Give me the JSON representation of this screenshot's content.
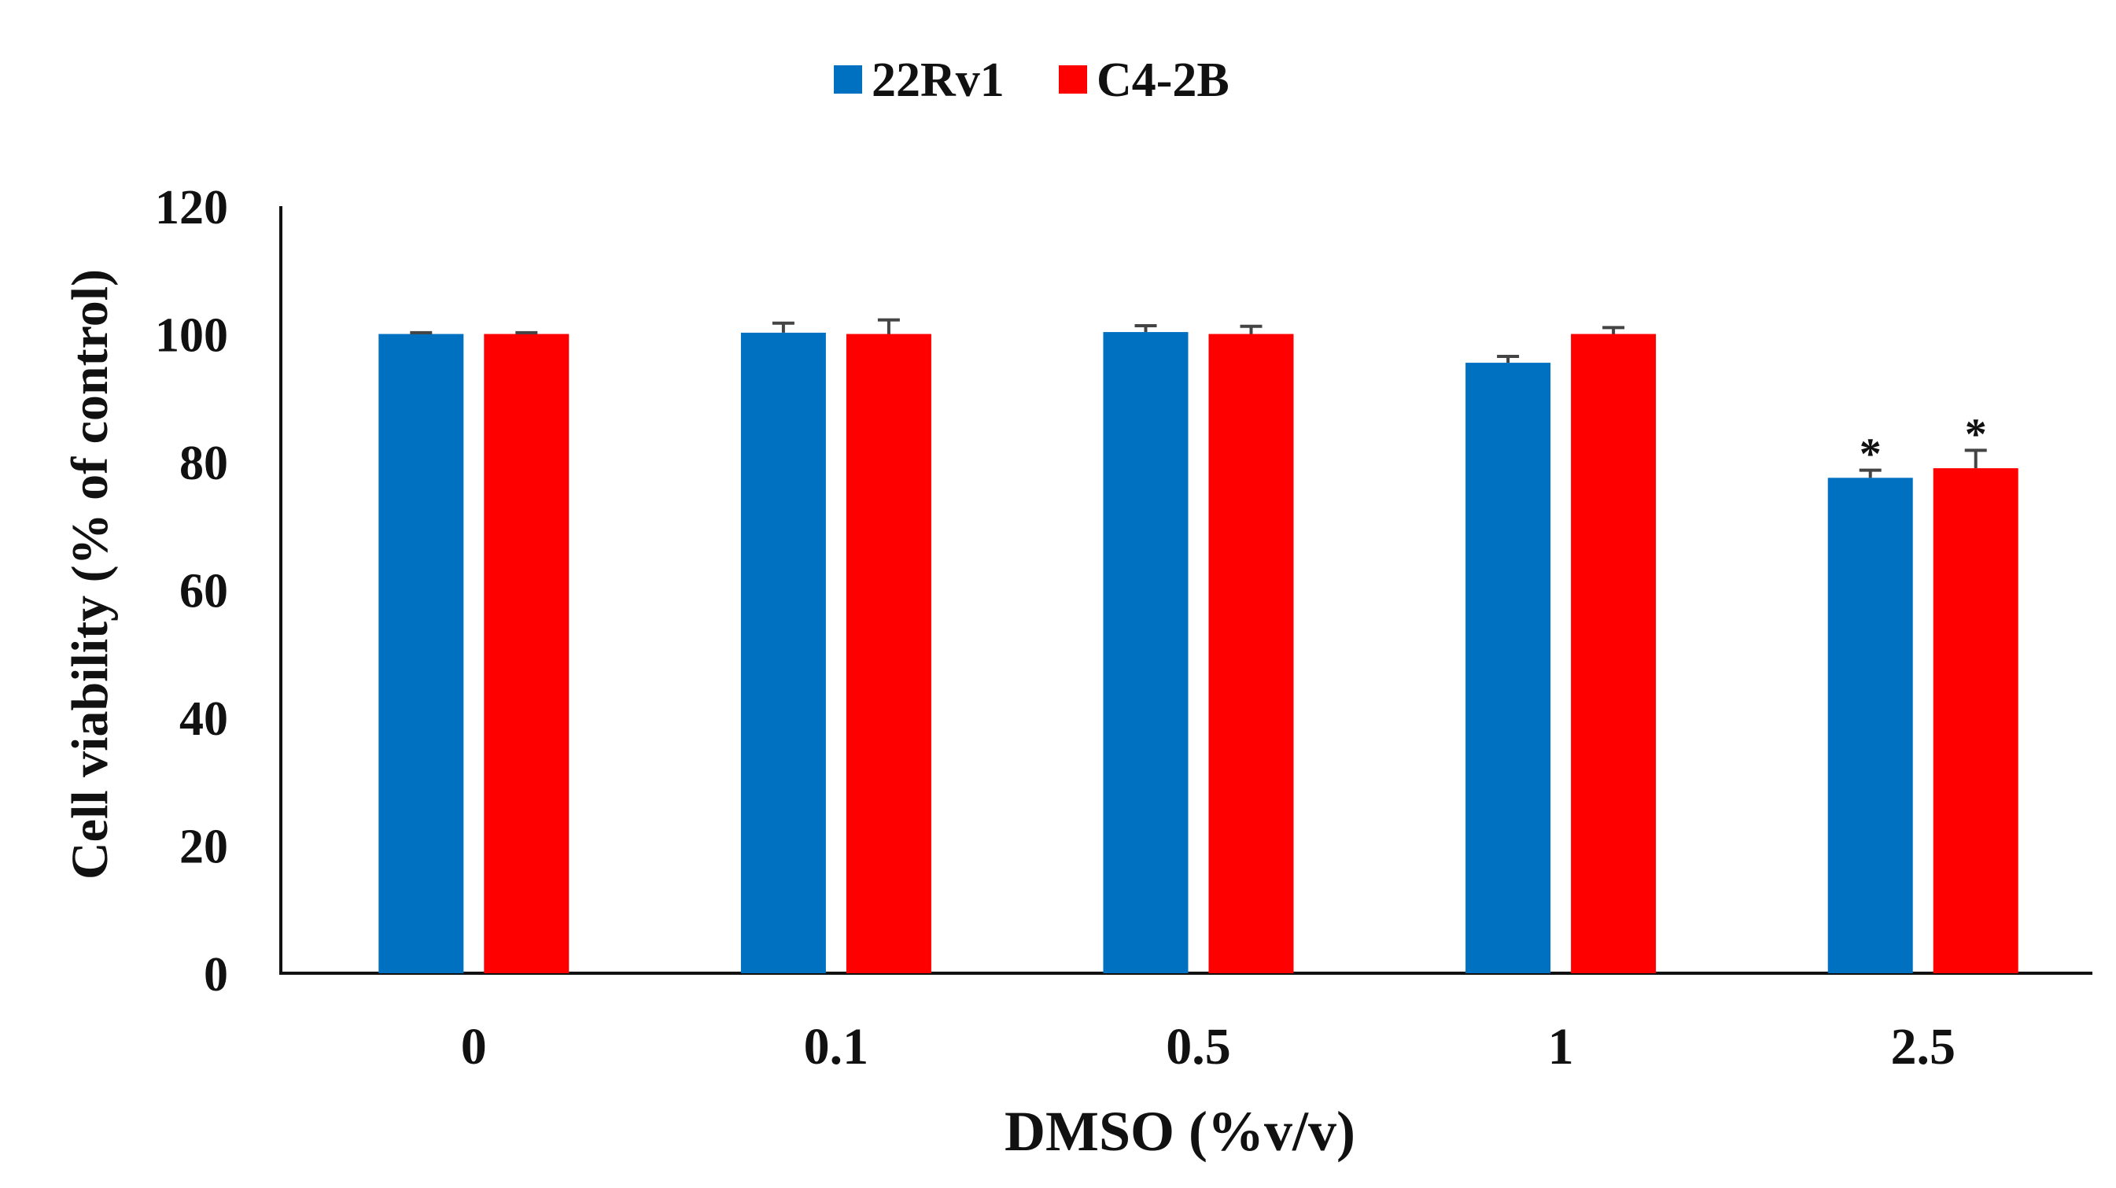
{
  "chart_data": {
    "type": "bar",
    "title": "",
    "xlabel": "DMSO (%v/v)",
    "ylabel": "Cell viability (% of control)",
    "ylim": [
      0,
      120
    ],
    "yticks": [
      0,
      20,
      40,
      60,
      80,
      100,
      120
    ],
    "categories": [
      "0",
      "0.1",
      "0.5",
      "1",
      "2.5"
    ],
    "series": [
      {
        "name": "22Rv1",
        "color": "#0070C0",
        "values": [
          100,
          100.2,
          100.3,
          95.5,
          77.5
        ],
        "errors": [
          0.2,
          1.5,
          1.0,
          1.0,
          1.2
        ],
        "annotations": [
          "",
          "",
          "",
          "",
          "*"
        ]
      },
      {
        "name": "C4-2B",
        "color": "#FF0000",
        "values": [
          100,
          100,
          100,
          100,
          79
        ],
        "errors": [
          0.2,
          2.2,
          1.2,
          1.0,
          2.8
        ],
        "annotations": [
          "",
          "",
          "",
          "",
          "*"
        ]
      }
    ],
    "legend_position": "top-center",
    "grid": false
  }
}
